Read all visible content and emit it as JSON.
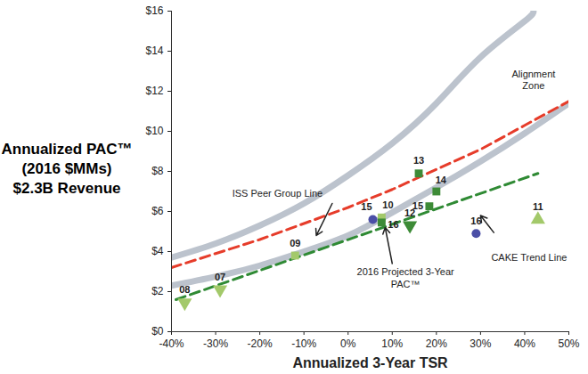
{
  "chart_data": {
    "type": "scatter",
    "xlabel": "Annualized 3-Year TSR",
    "ylabel": [
      "Annualized PAC™",
      "(2016 $MMs)",
      "$2.3B Revenue"
    ],
    "xlim": [
      -40,
      50
    ],
    "xticks": [
      {
        "value": -40,
        "label": "-40%"
      },
      {
        "value": -30,
        "label": "-30%"
      },
      {
        "value": -20,
        "label": "-20%"
      },
      {
        "value": -10,
        "label": "-10%"
      },
      {
        "value": 0,
        "label": "0%"
      },
      {
        "value": 10,
        "label": "10%"
      },
      {
        "value": 20,
        "label": "20%"
      },
      {
        "value": 30,
        "label": "30%"
      },
      {
        "value": 40,
        "label": "40%"
      },
      {
        "value": 50,
        "label": "50%"
      }
    ],
    "ylim": [
      0,
      16
    ],
    "yticks": [
      {
        "value": 0,
        "label": "$0"
      },
      {
        "value": 2,
        "label": "$2"
      },
      {
        "value": 4,
        "label": "$4"
      },
      {
        "value": 6,
        "label": "$6"
      },
      {
        "value": 8,
        "label": "$8"
      },
      {
        "value": 10,
        "label": "$10"
      },
      {
        "value": 12,
        "label": "$12"
      },
      {
        "value": 14,
        "label": "$14"
      },
      {
        "value": 16,
        "label": "$16"
      }
    ],
    "grid": false,
    "lines": [
      {
        "color": "#bcc3cd",
        "line_style": "solid",
        "x": [
          -40,
          -30,
          -20,
          -10,
          0,
          10,
          20,
          30,
          40,
          42
        ],
        "values": [
          3.7,
          4.4,
          5.3,
          6.4,
          7.8,
          9.4,
          11.4,
          13.7,
          15.5,
          16
        ]
      },
      {
        "color": "#bcc3cd",
        "line_style": "solid",
        "x": [
          -40,
          -30,
          -20,
          -10,
          0,
          10,
          20,
          30,
          40,
          50
        ],
        "values": [
          2.3,
          2.75,
          3.3,
          4.0,
          4.8,
          5.95,
          7.2,
          8.5,
          9.9,
          11.4
        ]
      },
      {
        "color": "#e63c2a",
        "line_style": "dashed",
        "x": [
          -40,
          -30,
          -20,
          -10,
          0,
          10,
          20,
          30,
          40,
          50
        ],
        "values": [
          3.2,
          3.9,
          4.6,
          5.4,
          6.2,
          7.1,
          8.1,
          9.1,
          10.3,
          11.5
        ]
      },
      {
        "color": "#2f8a34",
        "line_style": "dashed",
        "x": [
          -39,
          43
        ],
        "values": [
          1.6,
          7.9
        ]
      }
    ],
    "points": [
      {
        "label": "08",
        "x": -37,
        "y": 1.45,
        "marker": "triangle-down",
        "color": "#a3c96a"
      },
      {
        "label": "07",
        "x": -29,
        "y": 2.1,
        "marker": "triangle-down",
        "color": "#a3c96a"
      },
      {
        "label": "09",
        "x": -12,
        "y": 3.8,
        "marker": "square",
        "color": "#a3c96a"
      },
      {
        "label": "10",
        "x": 7.6,
        "y": 5.7,
        "marker": "square",
        "color": "#a3c96a"
      },
      {
        "label": "11",
        "x": 43,
        "y": 5.6,
        "marker": "triangle",
        "color": "#a3c96a"
      },
      {
        "label": "12",
        "x": 14,
        "y": 5.3,
        "marker": "triangle-down",
        "color": "#3d8b37"
      },
      {
        "label": "13",
        "x": 16,
        "y": 7.9,
        "marker": "square",
        "color": "#3d8b37"
      },
      {
        "label": "14",
        "x": 20,
        "y": 7.0,
        "marker": "square",
        "color": "#3d8b37"
      },
      {
        "label": "15",
        "x": 18.4,
        "y": 6.26,
        "marker": "square",
        "color": "#3d8b37"
      },
      {
        "label": "16",
        "x": 7.6,
        "y": 5.45,
        "marker": "square",
        "color": "#3d8b37"
      },
      {
        "label": "15",
        "x": 5.6,
        "y": 5.6,
        "marker": "circle",
        "color": "#4b4fa6"
      },
      {
        "label": "16",
        "x": 29,
        "y": 4.9,
        "marker": "circle",
        "color": "#4b4fa6"
      }
    ],
    "annotations": [
      {
        "text": "Alignment\nZone",
        "x": 42,
        "y": 12.6
      },
      {
        "text": "ISS Peer Group Line",
        "x": -16,
        "y": 6.9,
        "arrow_from": [
          -3.6,
          6.4
        ],
        "arrow_to": [
          -7.2,
          4.8
        ]
      },
      {
        "text": "2016 Projected 3-Year\nPAC™",
        "x": 13,
        "y": 2.7,
        "arrow_from": [
          10,
          3.4
        ],
        "arrow_to": [
          8.4,
          5.2
        ]
      },
      {
        "text": "CAKE Trend Line",
        "x": 41,
        "y": 3.7,
        "arrow_from": [
          33,
          4.95
        ],
        "arrow_to": [
          30,
          5.8
        ]
      }
    ]
  }
}
